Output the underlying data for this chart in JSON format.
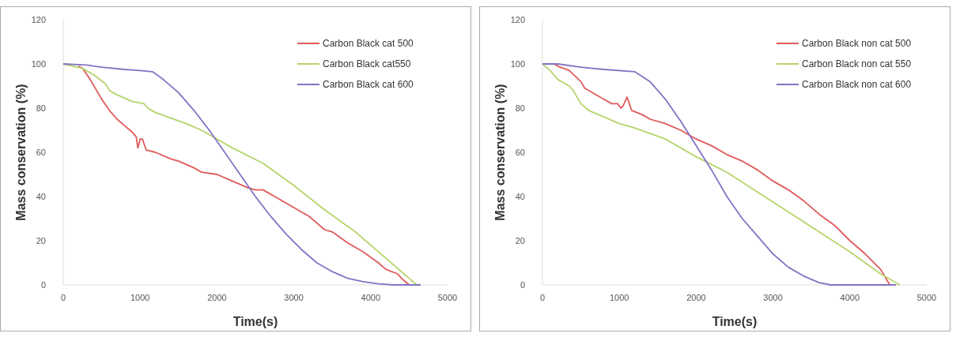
{
  "chart_data": [
    {
      "type": "line",
      "xlabel": "Time(s)",
      "ylabel": "Mass conservation (%)",
      "xlim": [
        0,
        5000
      ],
      "xticks": [
        0,
        1000,
        2000,
        3000,
        4000,
        5000
      ],
      "ylim": [
        0,
        120
      ],
      "yticks": [
        0,
        20,
        40,
        60,
        80,
        100,
        120
      ],
      "grid": false,
      "legend": "top right",
      "marker": "none",
      "line_style": "solid",
      "series": [
        {
          "name": "Carbon Black cat 500",
          "color": "#e05a5a",
          "x": [
            200,
            250,
            350,
            450,
            500,
            600,
            700,
            800,
            900,
            950,
            970,
            1000,
            1030,
            1080,
            1200,
            1400,
            1500,
            1700,
            1800,
            2000,
            2200,
            2400,
            2500,
            2600,
            2800,
            3000,
            3200,
            3300,
            3400,
            3500,
            3700,
            3900,
            4100,
            4200,
            4350,
            4400,
            4500
          ],
          "values": [
            99,
            98,
            93,
            87,
            84,
            79,
            75,
            72,
            69,
            67,
            62,
            66,
            66,
            61,
            60,
            57,
            56,
            53,
            51,
            50,
            47,
            44,
            43,
            43,
            39,
            35,
            31,
            28,
            25,
            24,
            19,
            15,
            10,
            7,
            5,
            3,
            0
          ]
        },
        {
          "name": "Carbon Black cat550",
          "color": "#b5d46b",
          "x": [
            0,
            250,
            400,
            550,
            600,
            700,
            900,
            1050,
            1100,
            1200,
            1600,
            1800,
            2000,
            2200,
            2600,
            3000,
            3400,
            3800,
            4200,
            4500,
            4600
          ],
          "values": [
            100,
            98,
            95,
            91,
            88,
            86,
            83,
            82,
            80,
            78,
            73,
            70,
            66,
            62,
            55,
            45,
            34,
            24,
            12,
            3,
            0
          ]
        },
        {
          "name": "Carbon Black cat 600",
          "color": "#8473c4",
          "x": [
            0,
            300,
            500,
            800,
            1000,
            1160,
            1300,
            1500,
            1700,
            1900,
            2100,
            2300,
            2500,
            2700,
            2900,
            3100,
            3300,
            3500,
            3700,
            3900,
            4100,
            4300,
            4650
          ],
          "values": [
            100,
            99.5,
            98.5,
            97.5,
            97,
            96.5,
            93,
            87,
            79,
            70,
            60,
            50,
            40,
            31,
            23,
            16,
            10,
            6,
            3,
            1.5,
            0.5,
            0,
            0
          ]
        }
      ]
    },
    {
      "type": "line",
      "xlabel": "Time(s)",
      "ylabel": "Mass conservation (%)",
      "xlim": [
        0,
        5000
      ],
      "xticks": [
        0,
        1000,
        2000,
        3000,
        4000,
        5000
      ],
      "ylim": [
        0,
        120
      ],
      "yticks": [
        0,
        20,
        40,
        60,
        80,
        100,
        120
      ],
      "grid": false,
      "legend": "top right",
      "marker": "none",
      "line_style": "solid",
      "series": [
        {
          "name": "Carbon Black non cat 500",
          "color": "#e05a5a",
          "x": [
            150,
            200,
            350,
            500,
            550,
            700,
            800,
            900,
            980,
            1020,
            1050,
            1100,
            1130,
            1160,
            1300,
            1400,
            1600,
            1800,
            2000,
            2200,
            2400,
            2600,
            2800,
            3000,
            3200,
            3400,
            3600,
            3800,
            4000,
            4200,
            4400,
            4520
          ],
          "values": [
            100,
            99,
            97,
            92,
            89,
            86,
            84,
            82,
            82,
            80,
            81,
            85,
            82,
            79,
            77,
            75,
            73,
            70,
            66,
            63,
            59,
            56,
            52,
            47,
            43,
            38,
            32,
            27,
            20,
            14,
            7,
            0
          ]
        },
        {
          "name": "Carbon Black non cat 550",
          "color": "#b5d46b",
          "x": [
            0,
            100,
            200,
            350,
            400,
            500,
            600,
            800,
            1000,
            1200,
            1600,
            2000,
            2400,
            2800,
            3200,
            3600,
            4000,
            4400,
            4650
          ],
          "values": [
            100,
            97,
            93,
            90,
            88,
            82,
            79,
            76,
            73,
            71,
            66,
            58,
            51,
            42,
            33,
            24,
            15,
            5,
            0
          ]
        },
        {
          "name": "Carbon Black non cat 600",
          "color": "#8473c4",
          "x": [
            0,
            200,
            500,
            800,
            1200,
            1400,
            1600,
            1800,
            2000,
            2200,
            2400,
            2600,
            2800,
            3000,
            3200,
            3400,
            3600,
            3750,
            4600
          ],
          "values": [
            100,
            100,
            98.5,
            97.5,
            96.5,
            92,
            84,
            74,
            63,
            52,
            40,
            30,
            22,
            14,
            8,
            4,
            1,
            0,
            0
          ]
        }
      ]
    }
  ]
}
